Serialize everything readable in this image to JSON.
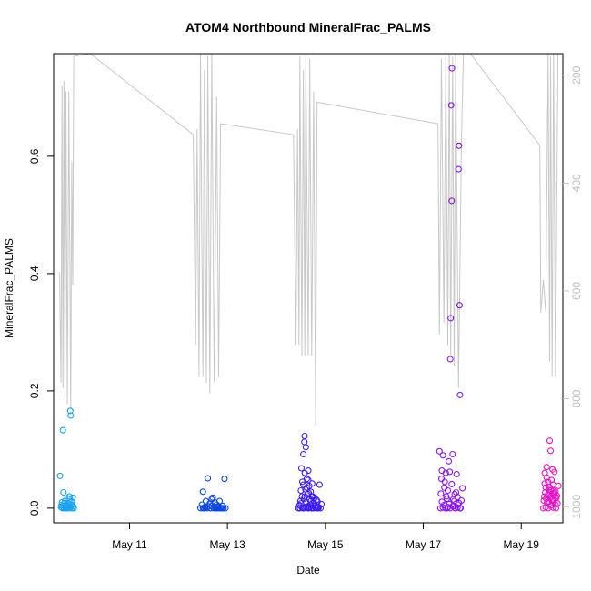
{
  "chart_data": {
    "type": "scatter",
    "title": "ATOM4 Northbound MineralFrac_PALMS",
    "xlabel": "Date",
    "ylabel": "MineralFrac_PALMS",
    "x_unit": "days since May 9 00:00",
    "xlim": [
      9.45,
      19.85
    ],
    "ylim": [
      -0.025,
      0.775
    ],
    "x_ticks": [
      {
        "value": 11,
        "label": "May 11"
      },
      {
        "value": 13,
        "label": "May 13"
      },
      {
        "value": 15,
        "label": "May 15"
      },
      {
        "value": 17,
        "label": "May 17"
      },
      {
        "value": 19,
        "label": "May 19"
      }
    ],
    "y_ticks": [
      {
        "value": 0.0,
        "label": "0.0"
      },
      {
        "value": 0.2,
        "label": "0.2"
      },
      {
        "value": 0.4,
        "label": "0.4"
      },
      {
        "value": 0.6,
        "label": "0.6"
      }
    ],
    "secondary_axis": {
      "side": "right",
      "reversed": true,
      "range": [
        1030,
        160
      ],
      "ticks": [
        {
          "value": 200,
          "label": "200"
        },
        {
          "value": 400,
          "label": "400"
        },
        {
          "value": 600,
          "label": "600"
        },
        {
          "value": 800,
          "label": "800"
        },
        {
          "value": 1000,
          "label": "1000"
        }
      ],
      "color": "#c8c8c8"
    },
    "grid": false,
    "legend": "none",
    "series": [
      {
        "color": "#1aa3f0",
        "points": [
          [
            9.58,
            0.055
          ],
          [
            9.6,
            0.002
          ],
          [
            9.61,
            0.005
          ],
          [
            9.62,
            0.01
          ],
          [
            9.63,
            0.0
          ],
          [
            9.64,
            0.133
          ],
          [
            9.65,
            0.027
          ],
          [
            9.66,
            0.004
          ],
          [
            9.67,
            0.008
          ],
          [
            9.68,
            0.012
          ],
          [
            9.69,
            0.0
          ],
          [
            9.7,
            0.003
          ],
          [
            9.71,
            0.006
          ],
          [
            9.72,
            0.001
          ],
          [
            9.73,
            0.017
          ],
          [
            9.74,
            0.0
          ],
          [
            9.75,
            0.008
          ],
          [
            9.76,
            0.004
          ],
          [
            9.77,
            0.02
          ],
          [
            9.78,
            0.016
          ],
          [
            9.79,
            0.166
          ],
          [
            9.8,
            0.158
          ],
          [
            9.81,
            0.005
          ],
          [
            9.82,
            0.011
          ],
          [
            9.83,
            0.0
          ],
          [
            9.84,
            0.018
          ],
          [
            9.85,
            0.003
          ],
          [
            9.86,
            0.0
          ],
          [
            9.62,
            0.001
          ],
          [
            9.66,
            0.0
          ],
          [
            9.7,
            0.0
          ],
          [
            9.75,
            0.002
          ],
          [
            9.79,
            0.0
          ],
          [
            9.83,
            0.006
          ]
        ]
      },
      {
        "color": "#0a46e6",
        "points": [
          [
            12.45,
            0.0
          ],
          [
            12.48,
            0.006
          ],
          [
            12.5,
            0.028
          ],
          [
            12.52,
            0.0
          ],
          [
            12.54,
            0.002
          ],
          [
            12.56,
            0.012
          ],
          [
            12.58,
            0.0
          ],
          [
            12.6,
            0.051
          ],
          [
            12.62,
            0.003
          ],
          [
            12.64,
            0.008
          ],
          [
            12.66,
            0.0
          ],
          [
            12.68,
            0.004
          ],
          [
            12.7,
            0.018
          ],
          [
            12.72,
            0.0
          ],
          [
            12.74,
            0.01
          ],
          [
            12.76,
            0.0
          ],
          [
            12.78,
            0.006
          ],
          [
            12.8,
            0.002
          ],
          [
            12.82,
            0.0
          ],
          [
            12.84,
            0.012
          ],
          [
            12.86,
            0.001
          ],
          [
            12.88,
            0.0
          ],
          [
            12.9,
            0.004
          ],
          [
            12.92,
            0.0
          ],
          [
            12.94,
            0.05
          ],
          [
            12.96,
            0.0
          ],
          [
            12.5,
            0.0
          ],
          [
            12.55,
            0.001
          ],
          [
            12.65,
            0.0
          ],
          [
            12.75,
            0.002
          ],
          [
            12.85,
            0.0
          ],
          [
            12.9,
            0.0
          ],
          [
            12.68,
            0.015
          ],
          [
            12.78,
            0.0
          ]
        ]
      },
      {
        "color": "#3c1ef0",
        "points": [
          [
            14.45,
            0.0
          ],
          [
            14.47,
            0.005
          ],
          [
            14.49,
            0.012
          ],
          [
            14.5,
            0.03
          ],
          [
            14.51,
            0.068
          ],
          [
            14.52,
            0.02
          ],
          [
            14.53,
            0.045
          ],
          [
            14.54,
            0.0
          ],
          [
            14.55,
            0.092
          ],
          [
            14.56,
            0.016
          ],
          [
            14.57,
            0.113
          ],
          [
            14.575,
            0.123
          ],
          [
            14.58,
            0.06
          ],
          [
            14.59,
            0.032
          ],
          [
            14.6,
            0.104
          ],
          [
            14.61,
            0.01
          ],
          [
            14.62,
            0.05
          ],
          [
            14.63,
            0.003
          ],
          [
            14.64,
            0.024
          ],
          [
            14.65,
            0.064
          ],
          [
            14.66,
            0.0
          ],
          [
            14.67,
            0.038
          ],
          [
            14.68,
            0.015
          ],
          [
            14.69,
            0.006
          ],
          [
            14.7,
            0.028
          ],
          [
            14.71,
            0.0
          ],
          [
            14.72,
            0.02
          ],
          [
            14.73,
            0.042
          ],
          [
            14.74,
            0.008
          ],
          [
            14.75,
            0.0
          ],
          [
            14.76,
            0.013
          ],
          [
            14.78,
            0.018
          ],
          [
            14.8,
            0.004
          ],
          [
            14.82,
            0.0
          ],
          [
            14.84,
            0.011
          ],
          [
            14.86,
            0.002
          ],
          [
            14.88,
            0.04
          ],
          [
            14.9,
            0.0
          ],
          [
            14.92,
            0.007
          ],
          [
            14.48,
            0.0
          ],
          [
            14.52,
            0.001
          ],
          [
            14.56,
            0.0
          ],
          [
            14.6,
            0.002
          ],
          [
            14.64,
            0.0
          ],
          [
            14.68,
            0.001
          ],
          [
            14.72,
            0.0
          ],
          [
            14.76,
            0.0
          ],
          [
            14.8,
            0.001
          ],
          [
            14.84,
            0.0
          ],
          [
            14.5,
            0.008
          ],
          [
            14.58,
            0.02
          ],
          [
            14.62,
            0.035
          ],
          [
            14.66,
            0.026
          ],
          [
            14.7,
            0.012
          ],
          [
            14.74,
            0.02
          ],
          [
            14.78,
            0.007
          ],
          [
            14.82,
            0.014
          ],
          [
            14.86,
            0.0
          ],
          [
            14.55,
            0.04
          ],
          [
            14.65,
            0.048
          ]
        ]
      },
      {
        "color": "#8a14f0",
        "points": [
          [
            17.33,
            0.097
          ],
          [
            17.36,
            0.025
          ],
          [
            17.38,
            0.064
          ],
          [
            17.4,
            0.09
          ],
          [
            17.42,
            0.005
          ],
          [
            17.44,
            0.045
          ],
          [
            17.46,
            0.06
          ],
          [
            17.48,
            0.016
          ],
          [
            17.5,
            0.03
          ],
          [
            17.52,
            0.08
          ],
          [
            17.54,
            0.062
          ],
          [
            17.55,
            0.254
          ],
          [
            17.56,
            0.324
          ],
          [
            17.57,
            0.687
          ],
          [
            17.58,
            0.524
          ],
          [
            17.585,
            0.75
          ],
          [
            17.6,
            0.092
          ],
          [
            17.62,
            0.004
          ],
          [
            17.64,
            0.024
          ],
          [
            17.66,
            0.0
          ],
          [
            17.68,
            0.058
          ],
          [
            17.7,
            0.019
          ],
          [
            17.72,
            0.578
          ],
          [
            17.73,
            0.618
          ],
          [
            17.74,
            0.346
          ],
          [
            17.75,
            0.193
          ],
          [
            17.76,
            0.0
          ],
          [
            17.78,
            0.013
          ],
          [
            17.8,
            0.034
          ],
          [
            17.35,
            0.0
          ],
          [
            17.4,
            0.001
          ],
          [
            17.45,
            0.0
          ],
          [
            17.5,
            0.002
          ],
          [
            17.55,
            0.0
          ],
          [
            17.6,
            0.003
          ],
          [
            17.65,
            0.0
          ],
          [
            17.7,
            0.001
          ],
          [
            17.75,
            0.0
          ],
          [
            17.38,
            0.011
          ],
          [
            17.43,
            0.035
          ],
          [
            17.47,
            0.02
          ],
          [
            17.53,
            0.007
          ],
          [
            17.58,
            0.041
          ],
          [
            17.63,
            0.012
          ],
          [
            17.67,
            0.027
          ],
          [
            17.71,
            0.006
          ],
          [
            17.37,
            0.05
          ],
          [
            17.49,
            0.0
          ],
          [
            17.61,
            0.015
          ],
          [
            17.73,
            0.009
          ]
        ]
      },
      {
        "color": "#e614c8",
        "points": [
          [
            19.45,
            0.0
          ],
          [
            19.47,
            0.02
          ],
          [
            19.48,
            0.06
          ],
          [
            19.5,
            0.035
          ],
          [
            19.52,
            0.07
          ],
          [
            19.53,
            0.01
          ],
          [
            19.55,
            0.045
          ],
          [
            19.56,
            0.025
          ],
          [
            19.58,
            0.115
          ],
          [
            19.6,
            0.098
          ],
          [
            19.61,
            0.03
          ],
          [
            19.62,
            0.005
          ],
          [
            19.64,
            0.066
          ],
          [
            19.65,
            0.04
          ],
          [
            19.66,
            0.012
          ],
          [
            19.68,
            0.062
          ],
          [
            19.7,
            0.028
          ],
          [
            19.71,
            0.0
          ],
          [
            19.72,
            0.018
          ],
          [
            19.74,
            0.008
          ],
          [
            19.76,
            0.038
          ],
          [
            19.46,
            0.013
          ],
          [
            19.49,
            0.027
          ],
          [
            19.51,
            0.016
          ],
          [
            19.54,
            0.022
          ],
          [
            19.57,
            0.031
          ],
          [
            19.59,
            0.019
          ],
          [
            19.63,
            0.014
          ],
          [
            19.67,
            0.024
          ],
          [
            19.69,
            0.017
          ],
          [
            19.73,
            0.021
          ],
          [
            19.5,
            0.002
          ],
          [
            19.55,
            0.0
          ],
          [
            19.6,
            0.004
          ],
          [
            19.65,
            0.001
          ],
          [
            19.7,
            0.006
          ],
          [
            19.48,
            0.042
          ],
          [
            19.52,
            0.052
          ],
          [
            19.58,
            0.036
          ],
          [
            19.62,
            0.048
          ],
          [
            19.66,
            0.03
          ],
          [
            19.53,
            0.009
          ],
          [
            19.57,
            0.011
          ],
          [
            19.61,
            0.02
          ],
          [
            19.64,
            0.015
          ],
          [
            19.68,
            0.026
          ]
        ]
      }
    ],
    "pressure_line": [
      [
        9.57,
        565
      ],
      [
        9.6,
        770
      ],
      [
        9.62,
        220
      ],
      [
        9.64,
        780
      ],
      [
        9.66,
        210
      ],
      [
        9.68,
        800
      ],
      [
        9.7,
        230
      ],
      [
        9.73,
        810
      ],
      [
        9.76,
        230
      ],
      [
        9.8,
        820
      ],
      [
        9.82,
        360
      ],
      [
        9.84,
        590
      ],
      [
        9.86,
        165
      ],
      [
        10.2,
        160
      ],
      [
        12.3,
        310
      ],
      [
        12.35,
        700
      ],
      [
        12.38,
        300
      ],
      [
        12.42,
        760
      ],
      [
        12.45,
        160
      ],
      [
        12.5,
        760
      ],
      [
        12.53,
        190
      ],
      [
        12.57,
        770
      ],
      [
        12.6,
        165
      ],
      [
        12.64,
        790
      ],
      [
        12.68,
        160
      ],
      [
        12.73,
        770
      ],
      [
        12.78,
        240
      ],
      [
        12.82,
        760
      ],
      [
        12.86,
        290
      ],
      [
        14.35,
        310
      ],
      [
        14.4,
        700
      ],
      [
        14.43,
        300
      ],
      [
        14.46,
        700
      ],
      [
        14.48,
        165
      ],
      [
        14.52,
        720
      ],
      [
        14.55,
        190
      ],
      [
        14.58,
        720
      ],
      [
        14.6,
        160
      ],
      [
        14.65,
        720
      ],
      [
        14.68,
        170
      ],
      [
        14.72,
        720
      ],
      [
        14.76,
        230
      ],
      [
        14.8,
        850
      ],
      [
        14.83,
        250
      ],
      [
        17.3,
        290
      ],
      [
        17.33,
        680
      ],
      [
        17.37,
        170
      ],
      [
        17.42,
        660
      ],
      [
        17.46,
        165
      ],
      [
        17.5,
        700
      ],
      [
        17.53,
        160
      ],
      [
        17.56,
        720
      ],
      [
        17.6,
        165
      ],
      [
        17.63,
        740
      ],
      [
        17.66,
        160
      ],
      [
        17.72,
        780
      ],
      [
        17.78,
        320
      ],
      [
        17.82,
        160
      ],
      [
        17.9,
        160
      ],
      [
        17.96,
        160
      ],
      [
        19.38,
        330
      ],
      [
        19.4,
        640
      ],
      [
        19.45,
        580
      ],
      [
        19.5,
        640
      ],
      [
        19.55,
        160
      ],
      [
        19.58,
        730
      ],
      [
        19.6,
        165
      ],
      [
        19.63,
        760
      ],
      [
        19.66,
        160
      ],
      [
        19.7,
        760
      ],
      [
        19.75,
        160
      ]
    ]
  }
}
